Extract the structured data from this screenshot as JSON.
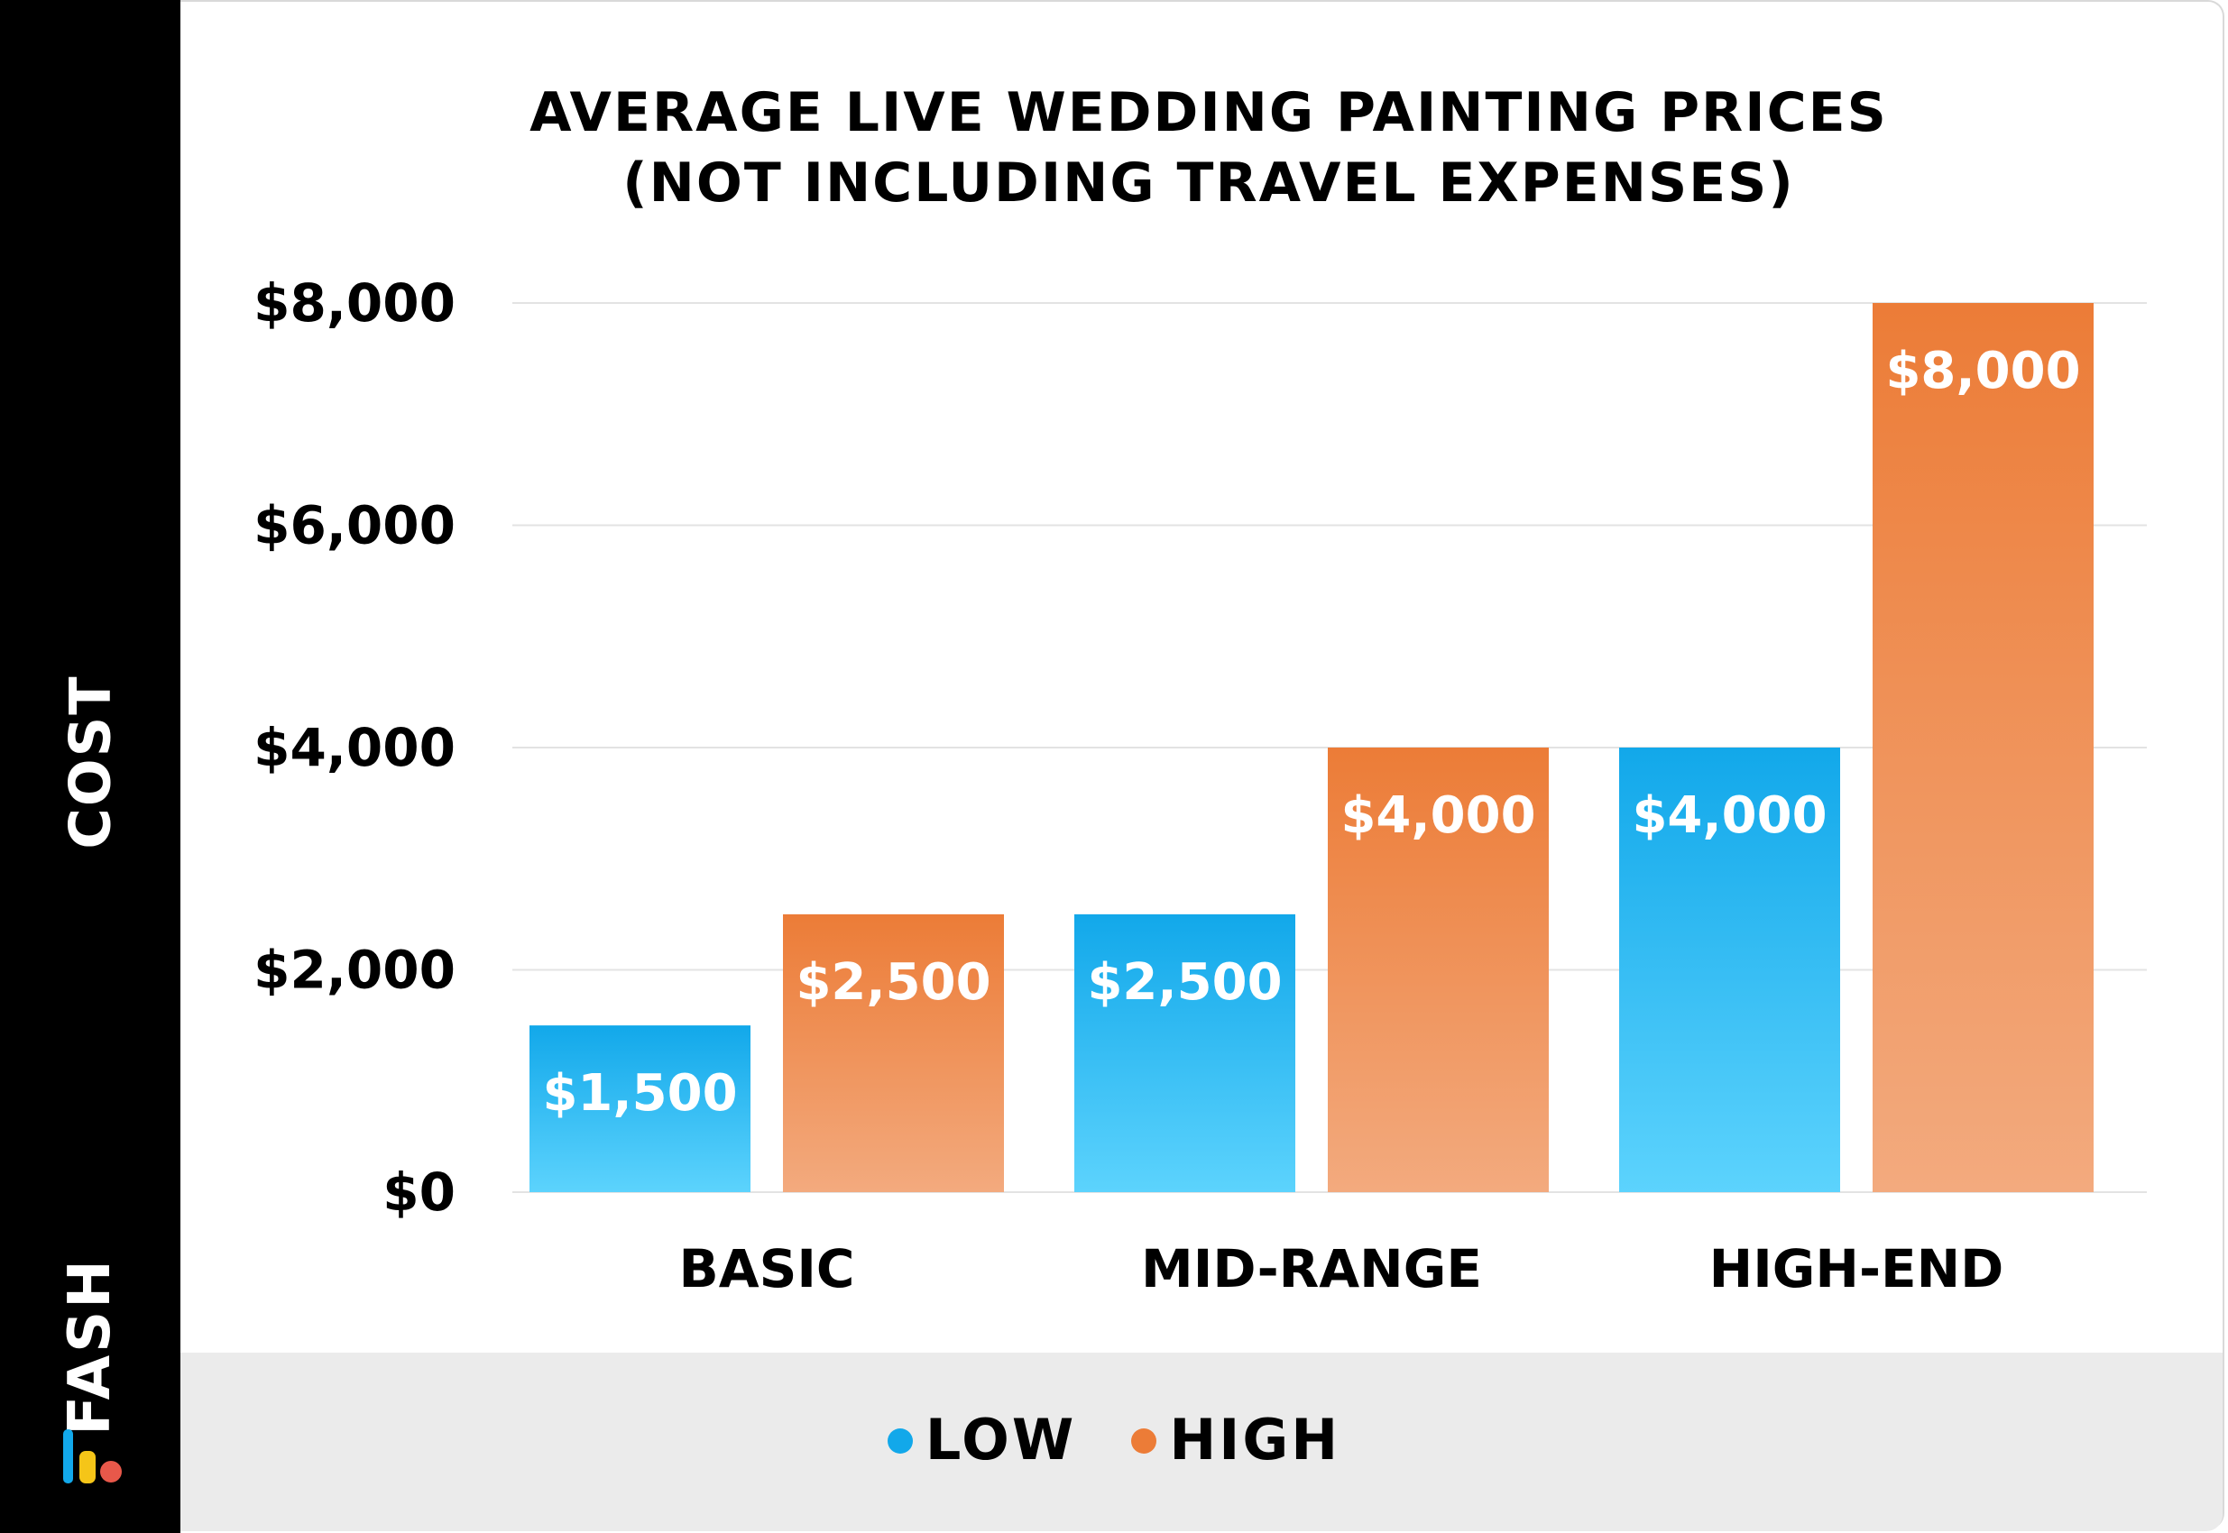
{
  "brand": {
    "logo_text": "FASH"
  },
  "chart_data": {
    "type": "bar",
    "title_lines": [
      "AVERAGE LIVE WEDDING PAINTING PRICES",
      "(NOT INCLUDING TRAVEL EXPENSES)"
    ],
    "xlabel": "",
    "ylabel": "COST",
    "categories": [
      "BASIC",
      "MID-RANGE",
      "HIGH-END"
    ],
    "series": [
      {
        "name": "LOW",
        "values": [
          1500,
          2500,
          4000
        ],
        "color": "#12a8ea",
        "color_light": "#5cd3fd"
      },
      {
        "name": "HIGH",
        "values": [
          2500,
          4000,
          8000
        ],
        "color": "#ec7c37",
        "color_light": "#f3aa7e"
      }
    ],
    "data_labels": [
      [
        "$1,500",
        "$2,500",
        "$4,000"
      ],
      [
        "$2,500",
        "$4,000",
        "$8,000"
      ]
    ],
    "y_ticks": [
      0,
      2000,
      4000,
      6000,
      8000
    ],
    "y_tick_labels": [
      "$0",
      "$2,000",
      "$4,000",
      "$6,000",
      "$8,000"
    ],
    "ylim": [
      0,
      8000
    ],
    "grid": true,
    "legend_position": "bottom"
  }
}
